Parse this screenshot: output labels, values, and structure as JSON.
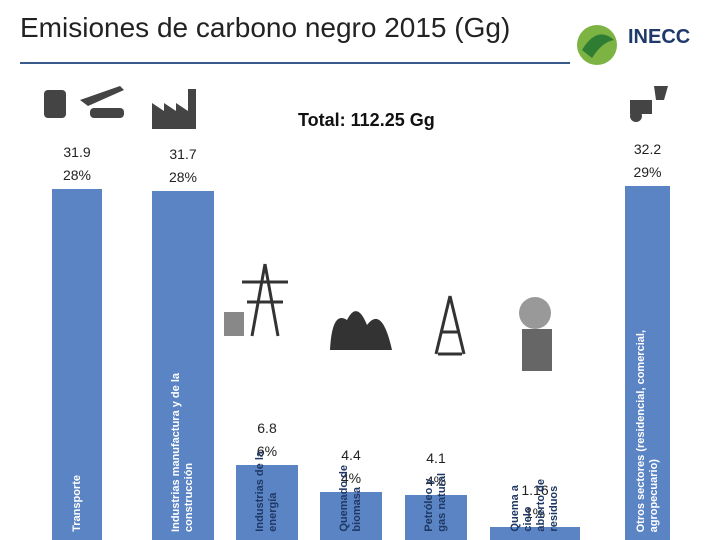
{
  "chart_data": {
    "type": "bar",
    "title": "Emisiones de carbono negro 2015 (Gg)",
    "total_label": "Total: 112.25 Gg",
    "logo": "INECC",
    "categories": [
      "Transporte",
      "Industrias manufactura y de la\nconstrucción",
      "Industrias de la\nenergía",
      "Quemado de\nbiomasa",
      "Petróleo y\ngas natural",
      "Quema a\ncielo\nabierto de\nresiduos",
      "Otros sectores (residencial, comercial,\nagropecuario)"
    ],
    "values": [
      31.9,
      31.7,
      6.8,
      4.4,
      4.1,
      1.16,
      32.2
    ],
    "share_labels": [
      "28%",
      "28%",
      "6%",
      "4%",
      "4%",
      "1%",
      "29%"
    ],
    "color": "#5b84c4"
  }
}
